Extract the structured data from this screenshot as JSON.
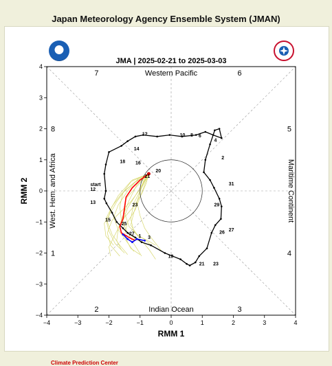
{
  "page_title": "Japan Meteorology Agency Ensemble System (JMAN)",
  "footer": "Climate Prediction Center",
  "logos": {
    "left": "noaa-logo",
    "right": "nws-logo",
    "right_text": "NATIONAL WEATHER SERVICE"
  },
  "chart_data": {
    "type": "line",
    "title": "JMA | 2025-02-21 to 2025-03-03",
    "xlabel": "RMM 1",
    "ylabel": "RMM 2",
    "xlim": [
      -4,
      4
    ],
    "ylim": [
      -4,
      4
    ],
    "ticks": [
      -4,
      -3,
      -2,
      -1,
      0,
      1,
      2,
      3,
      4
    ],
    "region_labels": {
      "top": "Western Pacific",
      "bottom": "Indian Ocean",
      "left": "West. Hem. and Africa",
      "right": "Maritime Continent"
    },
    "phase_labels": [
      {
        "text": "7",
        "x": -2.4,
        "y": 3.8
      },
      {
        "text": "6",
        "x": 2.2,
        "y": 3.8
      },
      {
        "text": "8",
        "x": -3.8,
        "y": 2.0
      },
      {
        "text": "5",
        "x": 3.8,
        "y": 2.0
      },
      {
        "text": "1",
        "x": -3.8,
        "y": -2.0
      },
      {
        "text": "4",
        "x": 3.8,
        "y": -2.0
      },
      {
        "text": "2",
        "x": -2.4,
        "y": -3.8
      },
      {
        "text": "3",
        "x": 2.2,
        "y": -3.8
      }
    ],
    "colors": {
      "observed": "#000000",
      "ensemble_mean": "#ff0000",
      "members": "#d8d870",
      "week2": "#0000ff",
      "start_dot": "#cc0000"
    },
    "observed": {
      "x": [
        -2.1,
        -2.15,
        -2.08,
        -1.9,
        -1.75,
        -1.55,
        -1.4,
        -1.15,
        -0.95,
        -0.65,
        -0.2,
        0.3,
        0.5,
        0.6,
        0.78,
        0.9,
        1.15,
        1.3,
        1.42,
        1.6,
        1.62,
        1.55,
        1.38,
        1.25,
        1.05,
        1.1,
        1.25,
        1.4,
        1.55,
        1.62,
        1.35,
        1.1,
        0.8,
        0.35,
        -0.05,
        -0.45,
        -0.9,
        -1.15,
        -1.4,
        -1.6,
        -2.0,
        -2.1,
        -2.15,
        -2.1
      ],
      "y": [
        0.0,
        -0.25,
        -0.4,
        -0.7,
        -1.0,
        -1.2,
        -1.35,
        -1.5,
        -1.65,
        -1.75,
        -2.0,
        -2.2,
        -2.35,
        -2.4,
        -2.3,
        -2.1,
        -1.85,
        -1.35,
        -1.1,
        -0.9,
        -0.5,
        -0.25,
        0.1,
        0.35,
        0.6,
        1.0,
        1.5,
        1.95,
        2.0,
        1.7,
        1.8,
        1.9,
        1.8,
        1.75,
        1.8,
        1.75,
        1.8,
        1.75,
        1.6,
        1.45,
        1.25,
        0.85,
        0.55,
        0.0
      ]
    },
    "observed_labels": [
      {
        "text": "start",
        "x": -2.6,
        "y": 0.15
      },
      {
        "text": "12",
        "x": -2.6,
        "y": 0.0
      },
      {
        "text": "13",
        "x": -2.6,
        "y": -0.42
      },
      {
        "text": "15",
        "x": -2.12,
        "y": -0.98
      },
      {
        "text": "19",
        "x": -0.1,
        "y": -2.15
      },
      {
        "text": "21",
        "x": 0.9,
        "y": -2.4
      },
      {
        "text": "23",
        "x": 1.35,
        "y": -2.4
      },
      {
        "text": "26",
        "x": 1.55,
        "y": -1.38
      },
      {
        "text": "27",
        "x": 1.85,
        "y": -1.3
      },
      {
        "text": "29",
        "x": 1.38,
        "y": -0.5
      },
      {
        "text": "31",
        "x": 1.85,
        "y": 0.18
      },
      {
        "text": "2",
        "x": 1.62,
        "y": 1.02
      },
      {
        "text": "4",
        "x": 1.38,
        "y": 1.58
      },
      {
        "text": "6",
        "x": 0.88,
        "y": 1.72
      },
      {
        "text": "8",
        "x": 0.62,
        "y": 1.75
      },
      {
        "text": "10",
        "x": 0.28,
        "y": 1.75
      },
      {
        "text": "12",
        "x": -0.93,
        "y": 1.78
      },
      {
        "text": "14",
        "x": -1.2,
        "y": 1.3
      },
      {
        "text": "16",
        "x": -1.15,
        "y": 0.85
      },
      {
        "text": "18",
        "x": -1.65,
        "y": 0.9
      },
      {
        "text": "20",
        "x": -0.5,
        "y": 0.6
      },
      {
        "text": "21",
        "x": -0.85,
        "y": 0.42
      }
    ],
    "ensemble_mean": {
      "x": [
        -0.72,
        -1.0,
        -1.25,
        -1.45,
        -1.5,
        -1.55,
        -1.65,
        -1.6,
        -1.35,
        -1.15
      ],
      "y": [
        0.55,
        0.35,
        0.1,
        -0.2,
        -0.55,
        -0.9,
        -1.15,
        -1.35,
        -1.5,
        -1.6
      ]
    },
    "mean_labels": [
      {
        "text": "23",
        "x": -1.25,
        "y": -0.5
      },
      {
        "text": "25",
        "x": -1.6,
        "y": -1.1
      },
      {
        "text": "27",
        "x": -1.35,
        "y": -1.42
      },
      {
        "text": "1",
        "x": -1.05,
        "y": -1.5
      },
      {
        "text": "3",
        "x": -0.75,
        "y": -1.55
      }
    ],
    "week2": {
      "x": [
        -1.55,
        -1.4,
        -1.25,
        -1.1,
        -0.85
      ],
      "y": [
        -1.4,
        -1.55,
        -1.65,
        -1.55,
        -1.6
      ]
    },
    "members": [
      {
        "x": [
          -0.72,
          -1.1,
          -1.35,
          -1.55,
          -1.7,
          -1.85,
          -2.0,
          -1.95
        ],
        "y": [
          0.55,
          0.2,
          -0.3,
          -0.8,
          -1.2,
          -1.5,
          -1.8,
          -2.1
        ]
      },
      {
        "x": [
          -0.72,
          -0.9,
          -1.05,
          -1.2,
          -1.3,
          -1.1,
          -0.8,
          -0.6
        ],
        "y": [
          0.55,
          0.3,
          -0.2,
          -0.7,
          -1.1,
          -1.4,
          -1.6,
          -1.8
        ]
      },
      {
        "x": [
          -0.72,
          -1.2,
          -1.6,
          -1.9,
          -2.1,
          -2.0,
          -1.8,
          -1.5
        ],
        "y": [
          0.55,
          0.25,
          -0.1,
          -0.5,
          -0.9,
          -1.3,
          -1.7,
          -2.0
        ]
      },
      {
        "x": [
          -0.72,
          -0.95,
          -1.2,
          -1.3,
          -1.2,
          -0.95,
          -0.7,
          -0.5
        ],
        "y": [
          0.55,
          0.1,
          -0.4,
          -0.9,
          -1.3,
          -1.6,
          -1.9,
          -2.2
        ]
      },
      {
        "x": [
          -0.72,
          -1.05,
          -1.4,
          -1.7,
          -1.85,
          -1.7,
          -1.45,
          -1.2
        ],
        "y": [
          0.55,
          0.4,
          0.0,
          -0.45,
          -0.85,
          -1.25,
          -1.6,
          -1.95
        ]
      },
      {
        "x": [
          -0.72,
          -0.85,
          -1.0,
          -1.15,
          -1.4,
          -1.5,
          -1.3,
          -1.0
        ],
        "y": [
          0.55,
          0.2,
          -0.2,
          -0.6,
          -1.0,
          -1.45,
          -1.85,
          -2.05
        ]
      },
      {
        "x": [
          -0.72,
          -1.15,
          -1.5,
          -1.75,
          -1.95,
          -2.15,
          -2.1,
          -1.85
        ],
        "y": [
          0.55,
          0.3,
          0.0,
          -0.35,
          -0.7,
          -1.05,
          -1.45,
          -1.75
        ]
      },
      {
        "x": [
          -0.72,
          -0.95,
          -1.1,
          -1.0,
          -0.85,
          -0.65,
          -0.45,
          -0.3
        ],
        "y": [
          0.55,
          0.1,
          -0.35,
          -0.8,
          -1.2,
          -1.5,
          -1.75,
          -1.95
        ]
      },
      {
        "x": [
          -0.72,
          -1.25,
          -1.55,
          -1.65,
          -1.6,
          -1.4,
          -1.2,
          -0.95
        ],
        "y": [
          0.55,
          0.35,
          -0.05,
          -0.5,
          -0.95,
          -1.35,
          -1.7,
          -2.1
        ]
      },
      {
        "x": [
          -0.72,
          -1.0,
          -1.3,
          -1.6,
          -1.9,
          -2.05,
          -1.95,
          -1.65
        ],
        "y": [
          0.55,
          0.05,
          -0.35,
          -0.65,
          -0.95,
          -1.35,
          -1.75,
          -2.1
        ]
      },
      {
        "x": [
          -0.72,
          -0.88,
          -1.15,
          -1.4,
          -1.55,
          -1.45,
          -1.15,
          -0.85
        ],
        "y": [
          0.55,
          0.3,
          -0.15,
          -0.55,
          -0.95,
          -1.3,
          -1.55,
          -1.7
        ]
      },
      {
        "x": [
          -0.72,
          -1.3,
          -1.7,
          -1.95,
          -2.05,
          -1.9,
          -1.65,
          -1.4
        ],
        "y": [
          0.55,
          0.3,
          -0.15,
          -0.6,
          -1.0,
          -1.4,
          -1.75,
          -2.05
        ]
      },
      {
        "x": [
          -0.72,
          -0.8,
          -0.95,
          -1.2,
          -1.5,
          -1.7,
          -1.75,
          -1.6
        ],
        "y": [
          0.55,
          0.25,
          -0.1,
          -0.5,
          -0.85,
          -1.2,
          -1.6,
          -1.9
        ]
      },
      {
        "x": [
          -0.72,
          -1.1,
          -1.45,
          -1.5,
          -1.35,
          -1.05,
          -0.75,
          -0.5
        ],
        "y": [
          0.55,
          0.15,
          -0.25,
          -0.7,
          -1.15,
          -1.45,
          -1.6,
          -1.75
        ]
      }
    ]
  }
}
